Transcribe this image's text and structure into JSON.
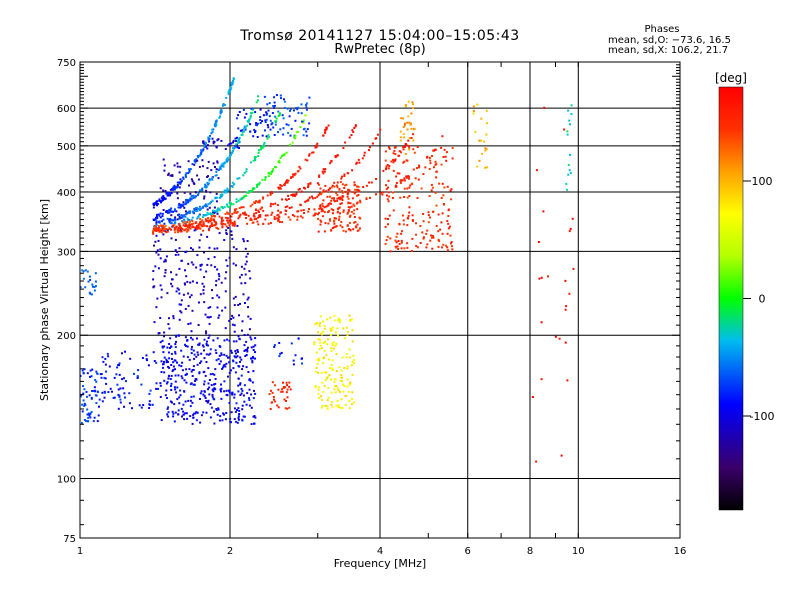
{
  "title_line1": "Tromsø 20141127 15:04:00–15:05:43",
  "title_line2": "RwPretec (8p)",
  "stats": {
    "heading": "Phases",
    "line_o": "mean, sd,O: −73.6, 16.5",
    "line_x": "mean, sd,X: 106.2, 21.7"
  },
  "chart_data": {
    "type": "scatter",
    "xlabel": "Frequency [MHz]",
    "ylabel": "Stationary phase Virtual Height [km]",
    "xscale": "log",
    "yscale": "log",
    "xlim": [
      1,
      16
    ],
    "ylim": [
      75,
      750
    ],
    "xticks": [
      1,
      2,
      4,
      6,
      8,
      10,
      16
    ],
    "yticks": [
      75,
      100,
      200,
      300,
      400,
      500,
      600,
      750
    ],
    "x_gridlines": [
      2,
      4,
      6,
      8,
      10
    ],
    "y_gridlines": [
      100,
      200,
      300,
      400,
      500,
      600
    ],
    "colorbar": {
      "label": "[deg]",
      "range": [
        -180,
        180
      ],
      "ticks": [
        100,
        0,
        -100
      ],
      "colormap": "rainbow"
    },
    "traces": [
      {
        "x_range": [
          1.0,
          1.1
        ],
        "y_range": [
          130,
          170
        ],
        "phase": -75,
        "n": 60
      },
      {
        "x_range": [
          1.0,
          1.08
        ],
        "y_range": [
          240,
          275
        ],
        "phase": -60,
        "n": 20
      },
      {
        "x_range": [
          1.1,
          1.45
        ],
        "y_range": [
          140,
          185
        ],
        "phase": -85,
        "n": 80
      },
      {
        "x_range": [
          1.45,
          2.25
        ],
        "y_range": [
          130,
          200
        ],
        "phase": -95,
        "n": 420
      },
      {
        "x_range": [
          1.4,
          2.2
        ],
        "y_range": [
          200,
          340
        ],
        "phase": -110,
        "n": 220
      },
      {
        "x_range": [
          1.45,
          1.9
        ],
        "y_range": [
          350,
          470
        ],
        "phase": -120,
        "n": 90
      },
      {
        "x_range": [
          1.75,
          2.1
        ],
        "y_range": [
          490,
          520
        ],
        "phase": -105,
        "n": 35
      },
      {
        "x_range": [
          2.05,
          2.4
        ],
        "y_range": [
          520,
          600
        ],
        "phase": -85,
        "n": 40
      },
      {
        "x_range": [
          2.35,
          2.9
        ],
        "y_range": [
          520,
          640
        ],
        "phase": -70,
        "n": 70
      },
      {
        "x_range": [
          2.4,
          2.65
        ],
        "y_range": [
          140,
          160
        ],
        "phase": 155,
        "n": 35
      },
      {
        "x_range": [
          2.45,
          2.8
        ],
        "y_range": [
          170,
          200
        ],
        "phase": -80,
        "n": 15
      },
      {
        "x_range": [
          2.95,
          3.55
        ],
        "y_range": [
          140,
          220
        ],
        "phase": 75,
        "n": 170
      },
      {
        "x_range": [
          3.0,
          3.65
        ],
        "y_range": [
          330,
          420
        ],
        "phase": 150,
        "n": 140
      },
      {
        "x_range": [
          4.1,
          5.6
        ],
        "y_range": [
          300,
          500
        ],
        "phase": 150,
        "n": 200
      },
      {
        "x_range": [
          4.4,
          4.7
        ],
        "y_range": [
          480,
          620
        ],
        "phase": 110,
        "n": 30
      },
      {
        "x_range": [
          6.1,
          6.6
        ],
        "y_range": [
          440,
          620
        ],
        "phase": 100,
        "n": 20
      },
      {
        "x_range": [
          8.1,
          9.8
        ],
        "y_range": [
          90,
          640
        ],
        "phase": 170,
        "n": 25
      },
      {
        "x_range": [
          9.4,
          9.7
        ],
        "y_range": [
          400,
          630
        ],
        "phase": -30,
        "n": 14
      }
    ],
    "curves": [
      {
        "k": 2.8,
        "f0": 2.05,
        "h0": 300,
        "phase_start": -95,
        "phase_end": -35,
        "n": 160
      },
      {
        "k": 2.1,
        "f0": 2.3,
        "h0": 318,
        "phase_start": -88,
        "phase_end": -20,
        "n": 150
      },
      {
        "k": 1.6,
        "f0": 2.55,
        "h0": 330,
        "phase_start": -80,
        "phase_end": -5,
        "n": 130
      },
      {
        "k": 1.3,
        "f0": 2.85,
        "h0": 345,
        "phase_start": -70,
        "phase_end": 25,
        "n": 130
      },
      {
        "k": 1.1,
        "f0": 3.2,
        "h0": 360,
        "phase_start": 130,
        "phase_end": 165,
        "n": 130
      },
      {
        "k": 0.9,
        "f0": 3.6,
        "h0": 375,
        "phase_start": 150,
        "phase_end": 170,
        "n": 120
      },
      {
        "k": 0.75,
        "f0": 4.05,
        "h0": 385,
        "phase_start": 150,
        "phase_end": 168,
        "n": 120
      },
      {
        "k": 0.55,
        "f0": 4.7,
        "h0": 400,
        "phase_start": 145,
        "phase_end": 165,
        "n": 110
      },
      {
        "k": 0.42,
        "f0": 5.4,
        "h0": 410,
        "phase_start": 140,
        "phase_end": 160,
        "n": 90
      }
    ]
  }
}
